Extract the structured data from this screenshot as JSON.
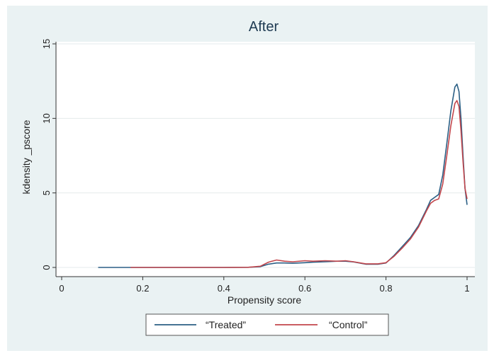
{
  "chart_data": {
    "type": "line",
    "title": "After",
    "xlabel": "Propensity score",
    "ylabel": "kdensity _pscore",
    "xlim": [
      0,
      1
    ],
    "ylim": [
      0,
      15
    ],
    "x_ticks": [
      "0",
      "0.2",
      "0.4",
      "0.6",
      "0.8",
      "1"
    ],
    "y_ticks": [
      "0",
      "5",
      "10",
      "15"
    ],
    "grid": true,
    "legend_position": "bottom",
    "series": [
      {
        "name": "“Treated”",
        "color": "#2b5f85",
        "x": [
          0.09,
          0.2,
          0.3,
          0.4,
          0.46,
          0.49,
          0.51,
          0.53,
          0.55,
          0.57,
          0.6,
          0.62,
          0.65,
          0.68,
          0.7,
          0.72,
          0.75,
          0.78,
          0.8,
          0.82,
          0.84,
          0.86,
          0.88,
          0.9,
          0.91,
          0.92,
          0.93,
          0.94,
          0.95,
          0.96,
          0.97,
          0.975,
          0.98,
          0.985,
          0.99,
          0.995,
          1.0
        ],
        "y": [
          0.0,
          0.0,
          0.0,
          0.0,
          0.01,
          0.05,
          0.22,
          0.3,
          0.3,
          0.28,
          0.32,
          0.35,
          0.38,
          0.42,
          0.42,
          0.37,
          0.22,
          0.22,
          0.3,
          0.8,
          1.4,
          2.0,
          2.8,
          3.9,
          4.5,
          4.7,
          4.9,
          6.2,
          8.3,
          10.5,
          12.1,
          12.3,
          11.8,
          10.0,
          7.5,
          5.3,
          4.2
        ]
      },
      {
        "name": "“Control”",
        "color": "#c2464c",
        "x": [
          0.17,
          0.25,
          0.3,
          0.4,
          0.46,
          0.49,
          0.51,
          0.53,
          0.55,
          0.57,
          0.6,
          0.62,
          0.65,
          0.68,
          0.7,
          0.72,
          0.75,
          0.78,
          0.8,
          0.82,
          0.84,
          0.86,
          0.88,
          0.9,
          0.91,
          0.92,
          0.93,
          0.94,
          0.95,
          0.96,
          0.97,
          0.975,
          0.98,
          0.985,
          0.99,
          0.995,
          1.0
        ],
        "y": [
          0.0,
          0.0,
          0.0,
          0.0,
          0.01,
          0.08,
          0.35,
          0.5,
          0.42,
          0.38,
          0.45,
          0.42,
          0.45,
          0.42,
          0.45,
          0.38,
          0.24,
          0.24,
          0.32,
          0.75,
          1.3,
          1.9,
          2.7,
          3.8,
          4.3,
          4.5,
          4.6,
          5.6,
          7.5,
          9.5,
          11.0,
          11.2,
          10.8,
          9.2,
          7.1,
          5.3,
          4.6
        ]
      }
    ]
  }
}
